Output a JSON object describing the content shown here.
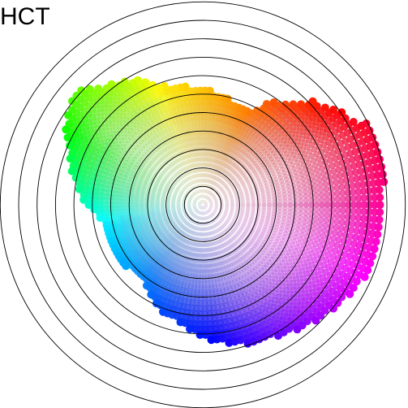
{
  "title": "HCT"
}
